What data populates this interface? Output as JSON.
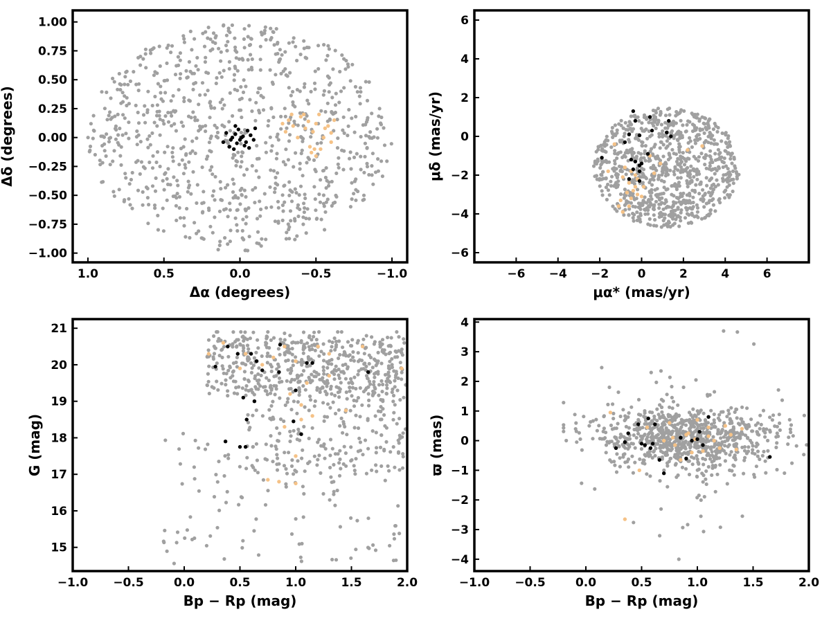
{
  "colors": {
    "field": "#a0a0a0",
    "cluster": "#000000",
    "candidate": "#f5c287",
    "frame": "#000000"
  },
  "chart_data": [
    {
      "type": "scatter",
      "xlabel": "Δα (degrees)",
      "ylabel": "Δδ (degrees)",
      "xlim": [
        1.1,
        -1.1
      ],
      "ylim": [
        -1.08,
        1.1
      ],
      "x_inverted": true,
      "xticks": [
        1.0,
        0.5,
        0.0,
        -0.5,
        -1.0
      ],
      "xtick_labels": [
        "1.0",
        "0.5",
        "0.0",
        "−0.5",
        "−1.0"
      ],
      "yticks": [
        1.0,
        0.75,
        0.5,
        0.25,
        0.0,
        -0.25,
        -0.5,
        -0.75,
        -1.0
      ],
      "ytick_labels": [
        "1.00",
        "0.75",
        "0.50",
        "0.25",
        "0.00",
        "−0.25",
        "−0.50",
        "−0.75",
        "−1.00"
      ],
      "grid": false,
      "field_shape": "disk",
      "field_count": 900,
      "field_center": [
        0,
        0
      ],
      "field_radius": [
        1.0,
        0.98
      ],
      "series": [
        {
          "role": "cluster",
          "points": [
            [
              -0.02,
              0.01
            ],
            [
              0.0,
              -0.02
            ],
            [
              0.03,
              0.03
            ],
            [
              0.05,
              0.0
            ],
            [
              -0.05,
              0.06
            ],
            [
              -0.07,
              0.02
            ],
            [
              -0.04,
              -0.04
            ],
            [
              0.02,
              -0.05
            ],
            [
              0.06,
              -0.02
            ],
            [
              -0.03,
              -0.07
            ],
            [
              0.01,
              0.07
            ],
            [
              0.09,
              0.04
            ],
            [
              -0.09,
              -0.02
            ],
            [
              -0.06,
              -0.09
            ],
            [
              0.07,
              -0.08
            ],
            [
              0.03,
              0.1
            ],
            [
              -0.1,
              0.08
            ],
            [
              0.11,
              -0.04
            ],
            [
              0.04,
              -0.1
            ],
            [
              -0.01,
              0.0
            ]
          ]
        },
        {
          "role": "candidate",
          "points": [
            [
              -0.28,
              0.12
            ],
            [
              -0.32,
              0.15
            ],
            [
              -0.35,
              0.1
            ],
            [
              -0.4,
              0.18
            ],
            [
              -0.43,
              0.08
            ],
            [
              -0.45,
              0.14
            ],
            [
              -0.48,
              0.05
            ],
            [
              -0.5,
              0.12
            ],
            [
              -0.52,
              0.2
            ],
            [
              -0.55,
              0.0
            ],
            [
              -0.58,
              0.1
            ],
            [
              -0.6,
              0.04
            ],
            [
              -0.62,
              0.15
            ],
            [
              -0.46,
              -0.08
            ],
            [
              -0.49,
              -0.1
            ],
            [
              -0.47,
              -0.13
            ],
            [
              -0.5,
              -0.16
            ],
            [
              -0.3,
              0.05
            ],
            [
              -0.38,
              0.0
            ],
            [
              -0.56,
              0.08
            ],
            [
              -0.42,
              0.2
            ],
            [
              -0.34,
              0.2
            ],
            [
              -0.6,
              -0.04
            ],
            [
              -0.53,
              -0.1
            ]
          ]
        }
      ]
    },
    {
      "type": "scatter",
      "xlabel": "μα* (mas/yr)",
      "ylabel": "μδ (mas/yr)",
      "xlim": [
        -8,
        8
      ],
      "ylim": [
        -6.5,
        6.5
      ],
      "xticks": [
        -6,
        -4,
        -2,
        0,
        2,
        4,
        6
      ],
      "xtick_labels": [
        "−6",
        "−4",
        "−2",
        "0",
        "2",
        "4",
        "6"
      ],
      "yticks": [
        -6,
        -4,
        -2,
        0,
        2,
        4,
        6
      ],
      "ytick_labels": [
        "−6",
        "−4",
        "−2",
        "0",
        "2",
        "4",
        "6"
      ],
      "grid": false,
      "field_shape": "disk",
      "field_count": 900,
      "field_center": [
        1.2,
        -1.6
      ],
      "field_radius": [
        3.5,
        3.1
      ],
      "series": [
        {
          "role": "cluster",
          "points": [
            [
              -0.4,
              1.3
            ],
            [
              -0.3,
              0.8
            ],
            [
              0.4,
              1.0
            ],
            [
              1.3,
              0.8
            ],
            [
              -0.6,
              0.1
            ],
            [
              0.5,
              0.3
            ],
            [
              1.2,
              0.2
            ],
            [
              1.4,
              0.0
            ],
            [
              -0.1,
              0.05
            ],
            [
              -0.8,
              -0.3
            ],
            [
              0.3,
              -0.9
            ],
            [
              -0.5,
              -1.2
            ],
            [
              -1.9,
              -1.1
            ],
            [
              -0.3,
              -1.3
            ],
            [
              0.0,
              -1.4
            ],
            [
              -0.1,
              -1.5
            ],
            [
              -0.4,
              -1.7
            ],
            [
              -0.1,
              -1.8
            ],
            [
              -0.6,
              -2.2
            ],
            [
              -0.1,
              -2.3
            ]
          ]
        },
        {
          "role": "candidate",
          "points": [
            [
              -1.3,
              -0.4
            ],
            [
              -1.6,
              -1.8
            ],
            [
              -0.8,
              -1.6
            ],
            [
              -0.5,
              -1.8
            ],
            [
              -0.3,
              -2.0
            ],
            [
              -0.2,
              -2.2
            ],
            [
              -0.6,
              -2.4
            ],
            [
              -0.3,
              -2.6
            ],
            [
              -0.7,
              -2.9
            ],
            [
              -0.2,
              -3.0
            ],
            [
              -0.5,
              -3.2
            ],
            [
              -1.0,
              -3.3
            ],
            [
              -0.6,
              -3.6
            ],
            [
              -0.9,
              -3.9
            ],
            [
              0.0,
              -3.1
            ],
            [
              0.6,
              -1.9
            ],
            [
              0.9,
              -1.4
            ],
            [
              2.2,
              -0.7
            ],
            [
              2.9,
              -0.5
            ],
            [
              -0.4,
              -2.8
            ],
            [
              0.4,
              -1.0
            ],
            [
              -0.9,
              -2.1
            ],
            [
              0.1,
              -2.6
            ],
            [
              -1.1,
              -3.6
            ]
          ]
        }
      ]
    },
    {
      "type": "scatter",
      "xlabel": "Bp − Rp (mag)",
      "ylabel": "G (mag)",
      "xlim": [
        -1.0,
        2.0
      ],
      "ylim": [
        14.35,
        21.25
      ],
      "xticks": [
        -1.0,
        -0.5,
        0.0,
        0.5,
        1.0,
        1.5,
        2.0
      ],
      "xtick_labels": [
        "−1.0",
        "−0.5",
        "0.0",
        "0.5",
        "1.0",
        "1.5",
        "2.0"
      ],
      "yticks": [
        15,
        16,
        17,
        18,
        19,
        20,
        21
      ],
      "ytick_labels": [
        "15",
        "16",
        "17",
        "18",
        "19",
        "20",
        "21"
      ],
      "grid": false,
      "field_shape": "cmd",
      "field_count": 850,
      "series": [
        {
          "role": "cluster",
          "points": [
            [
              0.39,
              20.5
            ],
            [
              0.86,
              20.55
            ],
            [
              0.28,
              19.95
            ],
            [
              0.48,
              20.3
            ],
            [
              0.6,
              20.3
            ],
            [
              0.65,
              20.1
            ],
            [
              0.7,
              19.85
            ],
            [
              0.85,
              19.8
            ],
            [
              1.1,
              20.05
            ],
            [
              1.15,
              20.05
            ],
            [
              1.65,
              19.8
            ],
            [
              0.53,
              19.1
            ],
            [
              0.63,
              19.0
            ],
            [
              1.0,
              19.3
            ],
            [
              0.56,
              18.5
            ],
            [
              0.98,
              18.45
            ],
            [
              1.05,
              18.1
            ],
            [
              0.37,
              17.9
            ],
            [
              0.5,
              17.75
            ],
            [
              0.55,
              17.75
            ]
          ]
        },
        {
          "role": "candidate",
          "points": [
            [
              0.22,
              20.3
            ],
            [
              0.35,
              20.6
            ],
            [
              0.55,
              20.3
            ],
            [
              0.9,
              20.5
            ],
            [
              1.0,
              20.1
            ],
            [
              1.2,
              20.5
            ],
            [
              1.3,
              20.3
            ],
            [
              1.6,
              20.5
            ],
            [
              0.7,
              20.0
            ],
            [
              0.5,
              19.9
            ],
            [
              0.8,
              20.2
            ],
            [
              1.1,
              19.5
            ],
            [
              0.95,
              19.2
            ],
            [
              1.05,
              18.9
            ],
            [
              1.15,
              18.6
            ],
            [
              1.05,
              18.5
            ],
            [
              0.9,
              18.3
            ],
            [
              1.45,
              18.75
            ],
            [
              1.3,
              19.7
            ],
            [
              1.0,
              17.5
            ],
            [
              0.85,
              16.8
            ],
            [
              0.75,
              16.85
            ],
            [
              1.0,
              16.75
            ],
            [
              1.95,
              19.9
            ]
          ]
        }
      ]
    },
    {
      "type": "scatter",
      "xlabel": "Bp − Rp (mag)",
      "ylabel": "ϖ (mas)",
      "xlim": [
        -1.0,
        2.0
      ],
      "ylim": [
        -4.4,
        4.1
      ],
      "xticks": [
        -1.0,
        -0.5,
        0.0,
        0.5,
        1.0,
        1.5,
        2.0
      ],
      "xtick_labels": [
        "−1.0",
        "−0.5",
        "0.0",
        "0.5",
        "1.0",
        "1.5",
        "2.0"
      ],
      "yticks": [
        -4,
        -3,
        -2,
        -1,
        0,
        1,
        2,
        3,
        4
      ],
      "ytick_labels": [
        "−4",
        "−3",
        "−2",
        "−1",
        "0",
        "1",
        "2",
        "3",
        "4"
      ],
      "grid": false,
      "field_shape": "band",
      "field_count": 900,
      "series": [
        {
          "role": "cluster",
          "points": [
            [
              0.27,
              -0.25
            ],
            [
              0.35,
              -0.05
            ],
            [
              0.38,
              0.25
            ],
            [
              0.47,
              0.55
            ],
            [
              0.5,
              -0.1
            ],
            [
              0.53,
              -0.15
            ],
            [
              0.56,
              0.75
            ],
            [
              0.58,
              -0.25
            ],
            [
              0.6,
              -0.1
            ],
            [
              0.62,
              0.55
            ],
            [
              0.66,
              -0.65
            ],
            [
              0.7,
              -1.1
            ],
            [
              0.85,
              0.1
            ],
            [
              0.9,
              -0.6
            ],
            [
              0.95,
              0.0
            ],
            [
              1.0,
              0.05
            ],
            [
              1.02,
              0.3
            ],
            [
              1.05,
              -0.15
            ],
            [
              1.1,
              0.8
            ],
            [
              1.65,
              -0.55
            ]
          ]
        },
        {
          "role": "candidate",
          "points": [
            [
              0.22,
              0.95
            ],
            [
              0.35,
              -2.65
            ],
            [
              0.48,
              -1.0
            ],
            [
              0.55,
              0.45
            ],
            [
              0.7,
              0.0
            ],
            [
              0.75,
              0.6
            ],
            [
              0.78,
              0.1
            ],
            [
              0.8,
              -0.15
            ],
            [
              0.85,
              -0.65
            ],
            [
              0.92,
              0.25
            ],
            [
              0.98,
              0.05
            ],
            [
              1.05,
              -0.35
            ],
            [
              1.1,
              0.15
            ],
            [
              1.15,
              0.0
            ],
            [
              1.2,
              -0.25
            ],
            [
              1.25,
              0.5
            ],
            [
              1.3,
              0.2
            ],
            [
              1.35,
              -0.3
            ],
            [
              1.1,
              0.45
            ],
            [
              0.95,
              -0.4
            ],
            [
              1.0,
              0.7
            ],
            [
              1.4,
              0.4
            ],
            [
              0.9,
              0.2
            ],
            [
              2.0,
              0.75
            ]
          ]
        }
      ]
    }
  ]
}
